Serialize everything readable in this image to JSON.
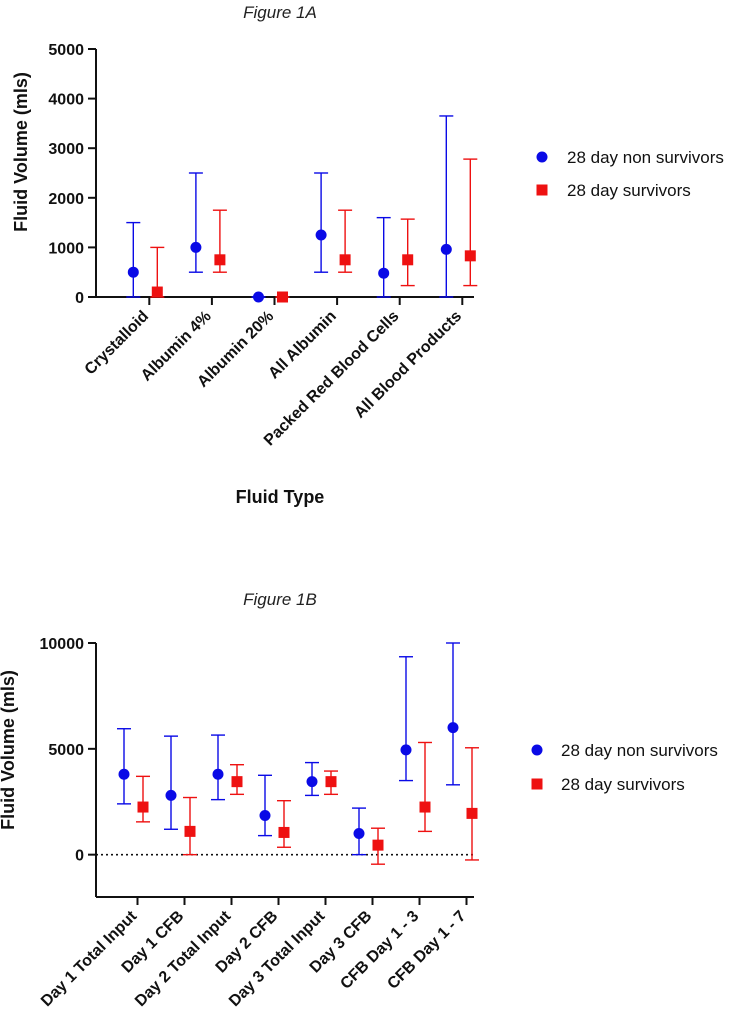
{
  "colors": {
    "non_survivors": "#0a0ae6",
    "survivors": "#ee1111",
    "axis": "#111111"
  },
  "chart_data": [
    {
      "type": "scatter",
      "title": "Figure 1A",
      "xlabel": "Fluid Type",
      "ylabel": "Fluid Volume (mls)",
      "ylim": [
        0,
        5000
      ],
      "yticks": [
        "0",
        "1000",
        "2000",
        "3000",
        "4000",
        "5000"
      ],
      "categories": [
        "Crystalloid",
        "Albumin 4%",
        "Albumin 20%",
        "All Albumin",
        "Packed Red Blood Cells",
        "All Blood Products"
      ],
      "series": [
        {
          "name": "28 day non survivors",
          "marker": "circle",
          "values": [
            500,
            1000,
            0,
            1250,
            480,
            960
          ],
          "low": [
            0,
            500,
            0,
            500,
            0,
            0
          ],
          "high": [
            1500,
            2500,
            0,
            2500,
            1600,
            3650
          ]
        },
        {
          "name": "28 day survivors",
          "marker": "square",
          "values": [
            100,
            750,
            0,
            750,
            750,
            830
          ],
          "low": [
            0,
            500,
            0,
            500,
            230,
            230
          ],
          "high": [
            1000,
            1750,
            0,
            1750,
            1570,
            2780
          ]
        }
      ],
      "legend_position": "right"
    },
    {
      "type": "scatter",
      "title": "Figure 1B",
      "xlabel": "",
      "ylabel": "Fluid Volume (mls)",
      "ylim": [
        -2000,
        10000
      ],
      "yticks": [
        "0",
        "5000",
        "10000"
      ],
      "reference_line": 0,
      "categories": [
        "Day 1 Total Input",
        "Day 1 CFB",
        "Day 2 Total Input",
        "Day 2 CFB",
        "Day 3 Total Input",
        "Day 3 CFB",
        "CFB Day 1 - 3",
        "CFB Day 1 - 7"
      ],
      "series": [
        {
          "name": "28 day non survivors",
          "marker": "circle",
          "values": [
            3800,
            2800,
            3800,
            1850,
            3450,
            1000,
            4950,
            6000
          ],
          "low": [
            2400,
            1200,
            2600,
            900,
            2800,
            0,
            3500,
            3300
          ],
          "high": [
            5950,
            5600,
            5650,
            3750,
            4350,
            2200,
            9350,
            10000
          ]
        },
        {
          "name": "28 day survivors",
          "marker": "square",
          "values": [
            2250,
            1100,
            3450,
            1050,
            3450,
            450,
            2250,
            1950
          ],
          "low": [
            1550,
            0,
            2850,
            350,
            2850,
            -450,
            1100,
            -250
          ],
          "high": [
            3700,
            2700,
            4250,
            2550,
            3950,
            1250,
            5300,
            5050
          ]
        }
      ],
      "legend_position": "right"
    }
  ]
}
